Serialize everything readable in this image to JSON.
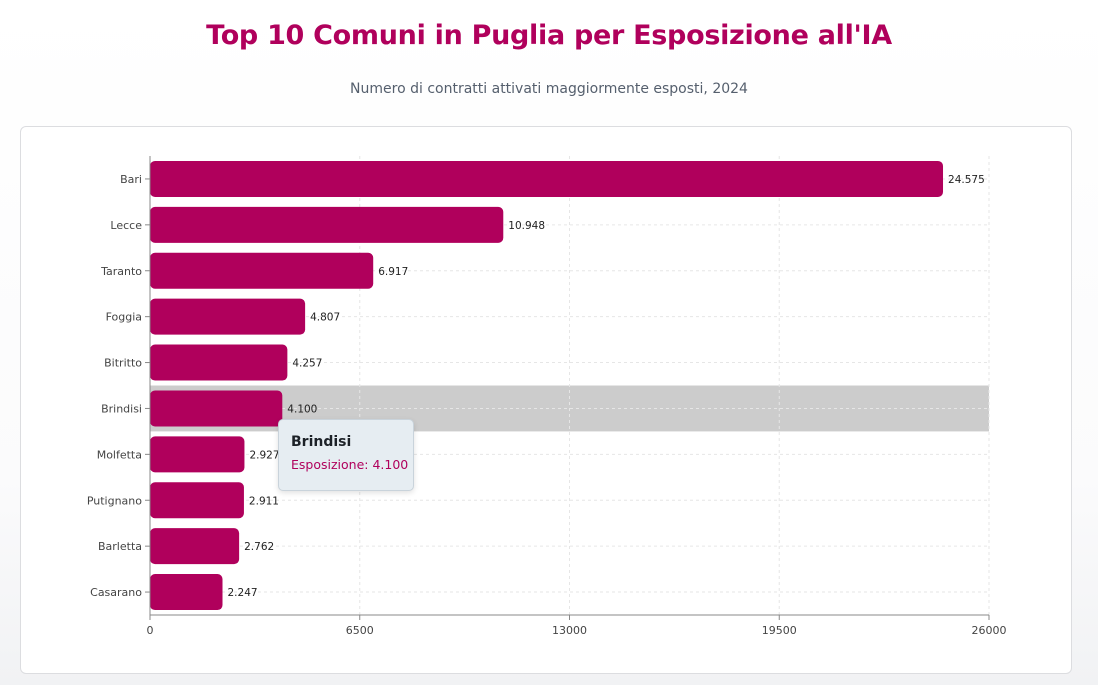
{
  "header": {
    "title": "Top 10 Comuni in Puglia per Esposizione all'IA",
    "subtitle": "Numero di contratti attivati maggiormente esposti, 2024"
  },
  "colors": {
    "bar": "#b0005c",
    "highlight": "#cccccc",
    "grid": "#e6e6e6",
    "axis": "#888888"
  },
  "chart_data": {
    "type": "bar",
    "orientation": "horizontal",
    "categories": [
      "Bari",
      "Lecce",
      "Taranto",
      "Foggia",
      "Bitritto",
      "Brindisi",
      "Molfetta",
      "Putignano",
      "Barletta",
      "Casarano"
    ],
    "values": [
      24575,
      10948,
      6917,
      4807,
      4257,
      4100,
      2927,
      2911,
      2762,
      2247
    ],
    "value_labels": [
      "24.575",
      "10.948",
      "6.917",
      "4.807",
      "4.257",
      "4.100",
      "2.927",
      "2.911",
      "2.762",
      "2.247"
    ],
    "x_ticks": [
      0,
      6500,
      13000,
      19500,
      26000
    ],
    "xlim": [
      0,
      26000
    ],
    "grid": true,
    "highlighted_category": "Brindisi"
  },
  "tooltip": {
    "title": "Brindisi",
    "line": "Esposizione: 4.100"
  }
}
